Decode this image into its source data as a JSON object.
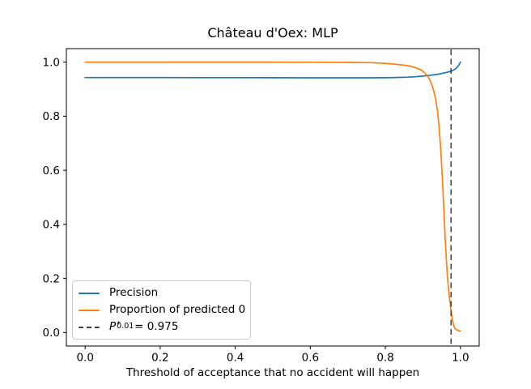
{
  "chart_data": {
    "type": "line",
    "title": "Château d'Oex: MLP",
    "xlabel": "Threshold of acceptance that no accident will happen",
    "ylabel": "",
    "xlim": [
      -0.05,
      1.05
    ],
    "ylim": [
      -0.05,
      1.05
    ],
    "xticks": [
      0.0,
      0.2,
      0.4,
      0.6,
      0.8,
      1.0
    ],
    "yticks": [
      0.0,
      0.2,
      0.4,
      0.6,
      0.8,
      1.0
    ],
    "grid": false,
    "legend_position": "lower left",
    "series": [
      {
        "name": "Precision",
        "color": "#1f77b4",
        "x": [
          0.0,
          0.1,
          0.2,
          0.3,
          0.4,
          0.5,
          0.6,
          0.7,
          0.75,
          0.8,
          0.83,
          0.86,
          0.88,
          0.9,
          0.92,
          0.935,
          0.95,
          0.96,
          0.97,
          0.975,
          0.98,
          0.985,
          0.99,
          0.994,
          0.997,
          1.0
        ],
        "y": [
          0.943,
          0.943,
          0.943,
          0.9428,
          0.9426,
          0.9424,
          0.9422,
          0.942,
          0.942,
          0.9424,
          0.9432,
          0.9445,
          0.946,
          0.9485,
          0.9515,
          0.954,
          0.958,
          0.961,
          0.9645,
          0.9665,
          0.9695,
          0.9735,
          0.979,
          0.9855,
          0.992,
          1.0
        ]
      },
      {
        "name": "Proportion of predicted 0",
        "color": "#ff7f0e",
        "x": [
          0.0,
          0.3,
          0.5,
          0.6,
          0.7,
          0.76,
          0.8,
          0.83,
          0.86,
          0.88,
          0.895,
          0.905,
          0.912,
          0.918,
          0.924,
          0.929,
          0.934,
          0.939,
          0.943,
          0.947,
          0.95,
          0.953,
          0.956,
          0.959,
          0.962,
          0.965,
          0.968,
          0.971,
          0.974,
          0.977,
          0.98,
          0.983,
          0.986,
          0.99,
          0.995,
          1.0
        ],
        "y": [
          1.0,
          1.0,
          1.0,
          0.9995,
          0.999,
          0.998,
          0.9955,
          0.992,
          0.987,
          0.98,
          0.9715,
          0.96,
          0.949,
          0.935,
          0.916,
          0.893,
          0.862,
          0.82,
          0.762,
          0.69,
          0.62,
          0.54,
          0.45,
          0.36,
          0.28,
          0.215,
          0.165,
          0.125,
          0.09,
          0.06,
          0.038,
          0.022,
          0.014,
          0.01,
          0.007,
          0.005
        ]
      }
    ],
    "vline": {
      "x": 0.975,
      "color": "#3f3f3f",
      "style": "dashed"
    }
  },
  "legend": {
    "items": [
      {
        "label": "Precision"
      },
      {
        "label": "Proportion of predicted 0"
      },
      {
        "var": "P",
        "sup": "*",
        "sub": "0.01",
        "rest": "= 0.975"
      }
    ]
  },
  "colors": {
    "precision": "#1f77b4",
    "proportion": "#ff7f0e",
    "threshold_line": "#3f3f3f",
    "axes": "#000000",
    "legend_border": "#cccccc"
  }
}
